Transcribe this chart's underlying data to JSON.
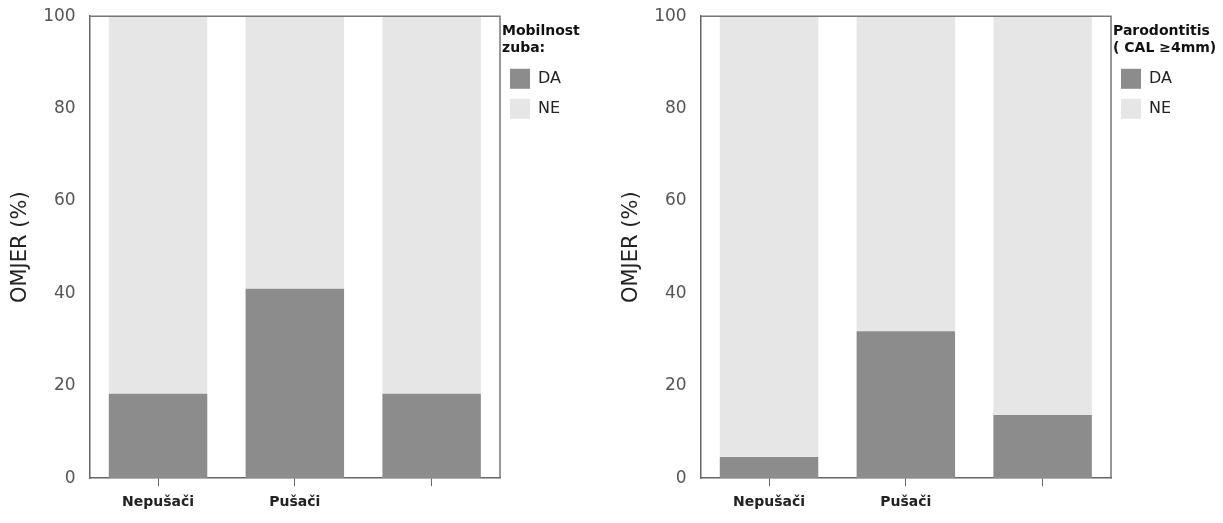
{
  "chart_data": [
    {
      "type": "bar",
      "stacked": true,
      "categories": [
        "Nepušači",
        "Pušači",
        null
      ],
      "ylabel": "OMJER (%)",
      "legend_title": "Mobilnost zuba:",
      "legend": "top right",
      "ylim": [
        0,
        100
      ],
      "yticks": [
        0,
        20,
        40,
        60,
        80,
        100
      ],
      "grid": false,
      "series": [
        {
          "name": "DA",
          "color": "#8c8c8c",
          "values": [
            18.3,
            41,
            18.3
          ]
        },
        {
          "name": "NE",
          "color": "#e6e6e6",
          "values": [
            81.7,
            59,
            81.7
          ]
        }
      ]
    },
    {
      "type": "bar",
      "stacked": true,
      "categories": [
        "Nepušači",
        "Pušači",
        null
      ],
      "ylabel": "OMJER (%)",
      "legend_title": "Parodontitis ( CAL ≥4mm)",
      "legend": "top right",
      "ylim": [
        0,
        100
      ],
      "yticks": [
        0,
        20,
        40,
        60,
        80,
        100
      ],
      "grid": false,
      "series": [
        {
          "name": "DA",
          "color": "#8c8c8c",
          "values": [
            4.6,
            31.8,
            13.7
          ]
        },
        {
          "name": "NE",
          "color": "#e6e6e6",
          "values": [
            95.4,
            68.2,
            86.3
          ]
        }
      ]
    }
  ]
}
